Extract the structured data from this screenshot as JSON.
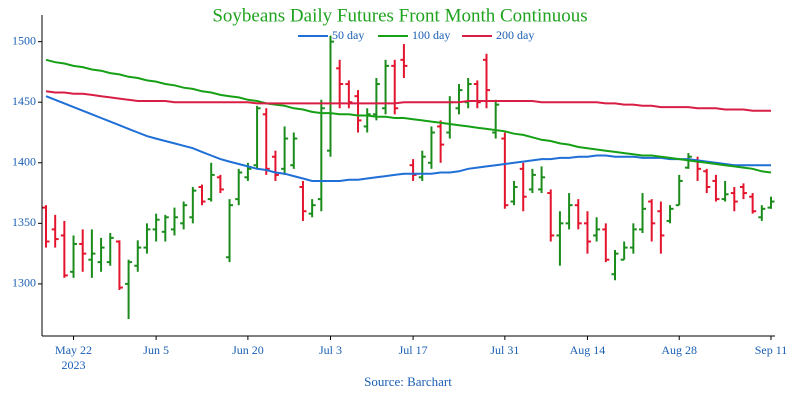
{
  "chart_data": {
    "type": "ohlc",
    "title": "Soybeans Daily Futures Front Month Continuous",
    "source": "Source: Barchart",
    "year_label": "2023",
    "categories": [
      null,
      null,
      null,
      "May 22",
      null,
      null,
      null,
      null,
      null,
      null,
      null,
      null,
      "Jun 5",
      null,
      null,
      null,
      null,
      null,
      null,
      null,
      null,
      null,
      "Jun 20",
      null,
      null,
      null,
      null,
      null,
      null,
      null,
      null,
      "Jul 3",
      null,
      null,
      null,
      null,
      null,
      null,
      null,
      null,
      "Jul 17",
      null,
      null,
      null,
      null,
      null,
      null,
      null,
      null,
      null,
      "Jul 31",
      null,
      null,
      null,
      null,
      null,
      null,
      null,
      null,
      "Aug 14",
      null,
      null,
      null,
      null,
      null,
      null,
      null,
      null,
      null,
      "Aug 28",
      null,
      null,
      null,
      null,
      null,
      null,
      null,
      null,
      null,
      "Sep 11"
    ],
    "open": [
      1363,
      1345,
      1340,
      1310,
      1333,
      1320,
      1318,
      1318,
      1335,
      1300,
      1315,
      1330,
      1345,
      1343,
      1345,
      1350,
      1355,
      1380,
      1370,
      1388,
      1322,
      1370,
      1388,
      1398,
      1440,
      1405,
      1395,
      1398,
      1380,
      1358,
      1370,
      1410,
      1478,
      1465,
      1455,
      1430,
      1440,
      1445,
      1480,
      1485,
      1398,
      1388,
      1400,
      1430,
      1425,
      1445,
      1450,
      1465,
      1485,
      1425,
      1420,
      1368,
      1395,
      1378,
      1378,
      1375,
      1340,
      1350,
      1365,
      1350,
      1340,
      1345,
      1308,
      1320,
      1330,
      1345,
      1368,
      1360,
      1352,
      1365,
      1396,
      1402,
      1393,
      1385,
      1370,
      1375,
      1380,
      1372,
      1355,
      1363
    ],
    "high": [
      1365,
      1357,
      1352,
      1340,
      1345,
      1345,
      1338,
      1342,
      1336,
      1320,
      1336,
      1350,
      1358,
      1357,
      1363,
      1368,
      1380,
      1382,
      1400,
      1390,
      1370,
      1395,
      1400,
      1447,
      1445,
      1410,
      1430,
      1425,
      1385,
      1370,
      1452,
      1505,
      1485,
      1468,
      1460,
      1445,
      1470,
      1485,
      1485,
      1498,
      1403,
      1410,
      1430,
      1435,
      1455,
      1465,
      1470,
      1468,
      1490,
      1452,
      1425,
      1385,
      1400,
      1395,
      1397,
      1378,
      1360,
      1375,
      1370,
      1360,
      1355,
      1350,
      1328,
      1335,
      1350,
      1375,
      1370,
      1368,
      1365,
      1390,
      1408,
      1405,
      1395,
      1390,
      1385,
      1380,
      1383,
      1375,
      1365,
      1372
    ],
    "low": [
      1330,
      1330,
      1305,
      1305,
      1310,
      1305,
      1310,
      1315,
      1295,
      1271,
      1310,
      1325,
      1335,
      1335,
      1340,
      1345,
      1350,
      1365,
      1368,
      1375,
      1318,
      1365,
      1385,
      1395,
      1390,
      1385,
      1390,
      1395,
      1352,
      1355,
      1360,
      1405,
      1445,
      1445,
      1425,
      1425,
      1435,
      1440,
      1440,
      1470,
      1385,
      1385,
      1395,
      1400,
      1420,
      1440,
      1445,
      1445,
      1445,
      1420,
      1362,
      1365,
      1360,
      1375,
      1375,
      1335,
      1315,
      1345,
      1345,
      1325,
      1335,
      1318,
      1303,
      1320,
      1325,
      1342,
      1335,
      1325,
      1350,
      1365,
      1395,
      1385,
      1375,
      1368,
      1368,
      1360,
      1370,
      1358,
      1352,
      1362
    ],
    "close": [
      1335,
      1337,
      1307,
      1333,
      1325,
      1325,
      1330,
      1338,
      1297,
      1318,
      1330,
      1345,
      1353,
      1355,
      1355,
      1365,
      1377,
      1368,
      1390,
      1378,
      1365,
      1392,
      1395,
      1445,
      1395,
      1390,
      1420,
      1420,
      1360,
      1365,
      1445,
      1500,
      1465,
      1450,
      1435,
      1440,
      1465,
      1480,
      1445,
      1480,
      1390,
      1405,
      1425,
      1415,
      1450,
      1460,
      1465,
      1450,
      1460,
      1448,
      1365,
      1380,
      1372,
      1390,
      1388,
      1340,
      1350,
      1365,
      1350,
      1335,
      1345,
      1320,
      1325,
      1330,
      1345,
      1362,
      1350,
      1340,
      1362,
      1385,
      1405,
      1395,
      1380,
      1370,
      1374,
      1368,
      1375,
      1360,
      1362,
      1368
    ],
    "up_color": "#1b8c1b",
    "down_color": "#e3142d",
    "series": [
      {
        "name": "50 day",
        "color": "#1f6fd6",
        "values": [
          1455,
          1452,
          1449,
          1446,
          1443,
          1440,
          1437,
          1434,
          1431,
          1428,
          1425,
          1422,
          1420,
          1418,
          1416,
          1414,
          1412,
          1409,
          1406,
          1403,
          1401,
          1399,
          1397,
          1395,
          1394,
          1392,
          1391,
          1389,
          1387,
          1385,
          1385,
          1385,
          1385,
          1386,
          1386,
          1387,
          1388,
          1389,
          1390,
          1391,
          1391,
          1391,
          1391,
          1392,
          1392,
          1393,
          1395,
          1396,
          1397,
          1398,
          1399,
          1400,
          1401,
          1402,
          1403,
          1403,
          1404,
          1404,
          1405,
          1405,
          1406,
          1406,
          1405,
          1405,
          1405,
          1404,
          1404,
          1404,
          1403,
          1403,
          1403,
          1402,
          1401,
          1400,
          1399,
          1398,
          1398,
          1398,
          1398,
          1398
        ]
      },
      {
        "name": "100 day",
        "color": "#16a016",
        "values": [
          1485,
          1483,
          1482,
          1480,
          1479,
          1477,
          1476,
          1474,
          1473,
          1471,
          1470,
          1468,
          1467,
          1465,
          1464,
          1462,
          1461,
          1459,
          1458,
          1456,
          1455,
          1454,
          1452,
          1451,
          1449,
          1448,
          1447,
          1445,
          1444,
          1442,
          1441,
          1441,
          1440,
          1440,
          1439,
          1439,
          1438,
          1438,
          1437,
          1437,
          1436,
          1435,
          1434,
          1433,
          1432,
          1431,
          1430,
          1429,
          1428,
          1427,
          1426,
          1424,
          1423,
          1421,
          1419,
          1418,
          1416,
          1415,
          1413,
          1412,
          1411,
          1410,
          1409,
          1408,
          1407,
          1406,
          1406,
          1405,
          1404,
          1403,
          1402,
          1401,
          1400,
          1399,
          1398,
          1397,
          1396,
          1395,
          1393,
          1392
        ]
      },
      {
        "name": "200 day",
        "color": "#d81e45",
        "values": [
          1459,
          1458,
          1458,
          1457,
          1457,
          1456,
          1455,
          1454,
          1453,
          1452,
          1451,
          1451,
          1451,
          1451,
          1450,
          1450,
          1450,
          1450,
          1450,
          1450,
          1450,
          1450,
          1450,
          1449,
          1449,
          1449,
          1449,
          1449,
          1449,
          1449,
          1449,
          1449,
          1449,
          1449,
          1449,
          1449,
          1449,
          1449,
          1449,
          1450,
          1450,
          1450,
          1450,
          1450,
          1450,
          1450,
          1451,
          1451,
          1451,
          1451,
          1451,
          1451,
          1451,
          1451,
          1450,
          1450,
          1450,
          1450,
          1450,
          1450,
          1450,
          1449,
          1449,
          1448,
          1448,
          1447,
          1447,
          1446,
          1446,
          1446,
          1446,
          1445,
          1445,
          1445,
          1444,
          1444,
          1444,
          1443,
          1443,
          1443
        ]
      }
    ],
    "ylim": [
      1257,
      1522
    ],
    "yticks": [
      1300,
      1350,
      1400,
      1450,
      1500
    ],
    "grid": false
  }
}
